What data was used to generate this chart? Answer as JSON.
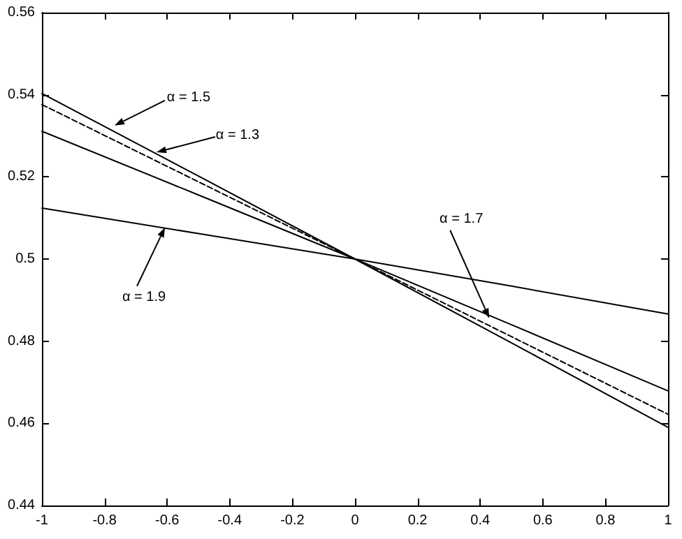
{
  "chart_data": {
    "type": "line",
    "x": [
      -1,
      -0.5,
      0,
      0.5,
      1
    ],
    "series": [
      {
        "color": "#000000",
        "line_style": "solid",
        "values": [
          0.5403,
          0.5202,
          0.5,
          0.4796,
          0.459
        ]
      },
      {
        "color": "#000000",
        "line_style": "dashed",
        "values": [
          0.5376,
          0.5188,
          0.5,
          0.4811,
          0.4622
        ]
      },
      {
        "color": "#000000",
        "line_style": "solid",
        "values": [
          0.5311,
          0.5156,
          0.5,
          0.484,
          0.4679
        ]
      },
      {
        "color": "#000000",
        "line_style": "solid",
        "values": [
          0.5124,
          0.5062,
          0.5,
          0.4934,
          0.4866
        ]
      }
    ],
    "xlim": [
      -1,
      1
    ],
    "xticks": [
      -1,
      -0.8,
      -0.6,
      -0.4,
      -0.2,
      0,
      0.2,
      0.4,
      0.6,
      0.8,
      1
    ],
    "ylim": [
      0.44,
      0.56
    ],
    "yticks": [
      0.44,
      0.46,
      0.48,
      0.5,
      0.52,
      0.54,
      0.56
    ],
    "grid": false,
    "marker": "none",
    "annotations": [
      {
        "text": "α = 1.5",
        "x": -0.768,
        "y": 0.5325
      },
      {
        "text": "α = 1.3",
        "x": -0.634,
        "y": 0.526
      },
      {
        "text": "α = 1.9",
        "x": -0.607,
        "y": 0.5077
      },
      {
        "text": "α = 1.7",
        "x": 0.429,
        "y": 0.4856
      }
    ]
  }
}
